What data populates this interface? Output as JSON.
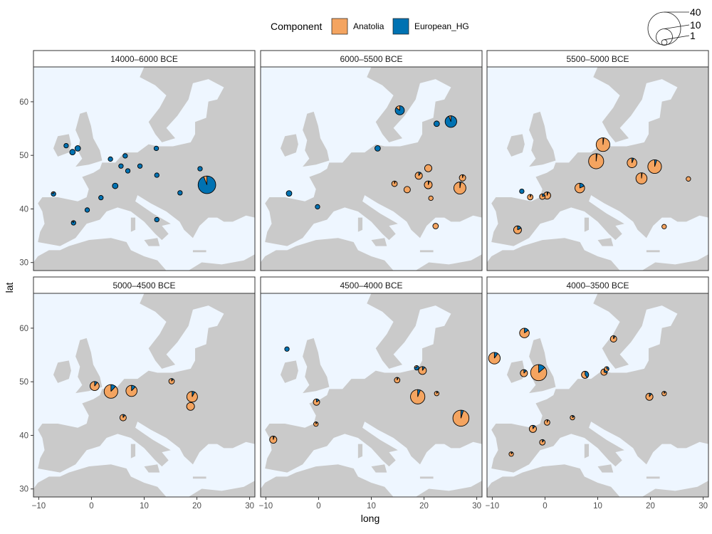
{
  "colors": {
    "anatolia": "#F4A460",
    "european_hg": "#0072B2",
    "sea": "#EEF6FF",
    "land": "#CACACA",
    "border": "#FFFFFF"
  },
  "legend": {
    "title": "Component",
    "entries": [
      "Anatolia",
      "European_HG"
    ],
    "size_labels": [
      "40",
      "10",
      "1"
    ],
    "size_values": [
      40,
      10,
      1
    ]
  },
  "chart_data": {
    "type": "pie",
    "subtype": "faceted map of pie charts",
    "xlabel": "long",
    "ylabel": "lat",
    "xlim": [
      -11,
      31
    ],
    "ylim": [
      28.5,
      66.5
    ],
    "x_ticks": [
      -10,
      0,
      10,
      20,
      30
    ],
    "x_tick_labels": [
      "−10",
      "0",
      "10",
      "20",
      "30"
    ],
    "y_ticks": [
      30,
      40,
      50,
      60
    ],
    "y_tick_labels": [
      "30",
      "40",
      "50",
      "60"
    ],
    "components": [
      "Anatolia",
      "European_HG"
    ],
    "panels": [
      {
        "title": "14000–6000 BCE",
        "points": [
          {
            "long": -7.2,
            "lat": 42.8,
            "n": 2,
            "anatolia": 0.15
          },
          {
            "long": -4.8,
            "lat": 51.8,
            "n": 2,
            "anatolia": 0.0
          },
          {
            "long": -3.6,
            "lat": 50.6,
            "n": 3,
            "anatolia": 0.0
          },
          {
            "long": -2.6,
            "lat": 51.3,
            "n": 3,
            "anatolia": 0.0
          },
          {
            "long": -3.4,
            "lat": 37.4,
            "n": 2,
            "anatolia": 0.1
          },
          {
            "long": -0.8,
            "lat": 39.8,
            "n": 2,
            "anatolia": 0.0
          },
          {
            "long": 1.8,
            "lat": 42.1,
            "n": 2,
            "anatolia": 0.0
          },
          {
            "long": 3.6,
            "lat": 49.3,
            "n": 2,
            "anatolia": 0.0
          },
          {
            "long": 4.5,
            "lat": 44.3,
            "n": 3,
            "anatolia": 0.0
          },
          {
            "long": 5.6,
            "lat": 48.0,
            "n": 2,
            "anatolia": 0.0
          },
          {
            "long": 6.4,
            "lat": 49.9,
            "n": 2,
            "anatolia": 0.0
          },
          {
            "long": 6.9,
            "lat": 47.1,
            "n": 2,
            "anatolia": 0.0
          },
          {
            "long": 9.2,
            "lat": 48.0,
            "n": 2,
            "anatolia": 0.0
          },
          {
            "long": 12.3,
            "lat": 51.3,
            "n": 2,
            "anatolia": 0.0
          },
          {
            "long": 12.4,
            "lat": 46.3,
            "n": 2,
            "anatolia": 0.0
          },
          {
            "long": 12.4,
            "lat": 38.0,
            "n": 2,
            "anatolia": 0.0
          },
          {
            "long": 16.8,
            "lat": 43.0,
            "n": 2,
            "anatolia": 0.0
          },
          {
            "long": 20.6,
            "lat": 47.5,
            "n": 2,
            "anatolia": 0.0
          },
          {
            "long": 21.9,
            "lat": 44.5,
            "n": 30,
            "anatolia": 0.06
          }
        ]
      },
      {
        "title": "6000–5500 BCE",
        "points": [
          {
            "long": -5.6,
            "lat": 42.9,
            "n": 3,
            "anatolia": 0.0
          },
          {
            "long": -0.2,
            "lat": 40.4,
            "n": 2,
            "anatolia": 0.0
          },
          {
            "long": 11.2,
            "lat": 51.3,
            "n": 3,
            "anatolia": 0.0
          },
          {
            "long": 14.4,
            "lat": 44.7,
            "n": 3,
            "anatolia": 0.95
          },
          {
            "long": 15.4,
            "lat": 58.4,
            "n": 8,
            "anatolia": 0.15
          },
          {
            "long": 16.8,
            "lat": 43.6,
            "n": 4,
            "anatolia": 1.0
          },
          {
            "long": 19.0,
            "lat": 46.2,
            "n": 5,
            "anatolia": 0.9
          },
          {
            "long": 20.8,
            "lat": 47.6,
            "n": 5,
            "anatolia": 1.0
          },
          {
            "long": 20.8,
            "lat": 44.5,
            "n": 6,
            "anatolia": 0.95
          },
          {
            "long": 21.3,
            "lat": 42.0,
            "n": 2,
            "anatolia": 1.0
          },
          {
            "long": 22.2,
            "lat": 36.8,
            "n": 3,
            "anatolia": 1.0
          },
          {
            "long": 22.4,
            "lat": 55.9,
            "n": 3,
            "anatolia": 0.0
          },
          {
            "long": 25.1,
            "lat": 56.3,
            "n": 13,
            "anatolia": 0.06
          },
          {
            "long": 26.8,
            "lat": 43.9,
            "n": 14,
            "anatolia": 0.97
          },
          {
            "long": 27.3,
            "lat": 45.8,
            "n": 4,
            "anatolia": 0.95
          }
        ]
      },
      {
        "title": "5500–5000 BCE",
        "points": [
          {
            "long": -4.4,
            "lat": 43.3,
            "n": 2,
            "anatolia": 0.0
          },
          {
            "long": -5.2,
            "lat": 36.1,
            "n": 6,
            "anatolia": 0.82
          },
          {
            "long": -2.8,
            "lat": 42.2,
            "n": 3,
            "anatolia": 0.95
          },
          {
            "long": -0.5,
            "lat": 42.3,
            "n": 3,
            "anatolia": 0.8
          },
          {
            "long": 0.4,
            "lat": 42.5,
            "n": 5,
            "anatolia": 0.95
          },
          {
            "long": 6.6,
            "lat": 43.9,
            "n": 9,
            "anatolia": 0.82
          },
          {
            "long": 9.7,
            "lat": 48.9,
            "n": 22,
            "anatolia": 0.98
          },
          {
            "long": 11.0,
            "lat": 52.0,
            "n": 18,
            "anatolia": 0.98
          },
          {
            "long": 16.5,
            "lat": 48.6,
            "n": 9,
            "anatolia": 0.94
          },
          {
            "long": 18.3,
            "lat": 45.7,
            "n": 12,
            "anatolia": 0.98
          },
          {
            "long": 20.8,
            "lat": 47.9,
            "n": 18,
            "anatolia": 0.95
          },
          {
            "long": 22.6,
            "lat": 36.7,
            "n": 2,
            "anatolia": 1.0
          },
          {
            "long": 27.2,
            "lat": 45.6,
            "n": 2,
            "anatolia": 1.0
          }
        ]
      },
      {
        "title": "5000–4500 BCE",
        "points": [
          {
            "long": 0.6,
            "lat": 49.2,
            "n": 8,
            "anatolia": 0.9
          },
          {
            "long": 3.7,
            "lat": 48.2,
            "n": 18,
            "anatolia": 0.88
          },
          {
            "long": 6.0,
            "lat": 43.3,
            "n": 4,
            "anatolia": 0.9
          },
          {
            "long": 7.6,
            "lat": 48.3,
            "n": 12,
            "anatolia": 0.88
          },
          {
            "long": 15.2,
            "lat": 50.1,
            "n": 3,
            "anatolia": 0.9
          },
          {
            "long": 18.8,
            "lat": 45.4,
            "n": 6,
            "anatolia": 1.0
          },
          {
            "long": 19.1,
            "lat": 47.2,
            "n": 11,
            "anatolia": 0.92
          }
        ]
      },
      {
        "title": "4500–4000 BCE",
        "points": [
          {
            "long": -8.6,
            "lat": 39.2,
            "n": 5,
            "anatolia": 0.95
          },
          {
            "long": -6.0,
            "lat": 56.1,
            "n": 2,
            "anatolia": 0.0
          },
          {
            "long": -0.4,
            "lat": 46.2,
            "n": 4,
            "anatolia": 0.85
          },
          {
            "long": -0.5,
            "lat": 42.1,
            "n": 2,
            "anatolia": 0.9
          },
          {
            "long": 14.9,
            "lat": 50.3,
            "n": 3,
            "anatolia": 0.94
          },
          {
            "long": 18.6,
            "lat": 52.6,
            "n": 2,
            "anatolia": 0.2
          },
          {
            "long": 19.7,
            "lat": 52.1,
            "n": 6,
            "anatolia": 0.9
          },
          {
            "long": 18.8,
            "lat": 47.2,
            "n": 20,
            "anatolia": 0.94
          },
          {
            "long": 22.4,
            "lat": 47.8,
            "n": 2,
            "anatolia": 0.9
          },
          {
            "long": 27.0,
            "lat": 43.2,
            "n": 25,
            "anatolia": 0.95
          }
        ]
      },
      {
        "title": "4000–3500 BCE",
        "points": [
          {
            "long": -9.6,
            "lat": 54.4,
            "n": 13,
            "anatolia": 0.9
          },
          {
            "long": -6.4,
            "lat": 36.5,
            "n": 2,
            "anatolia": 0.9
          },
          {
            "long": -4.0,
            "lat": 51.6,
            "n": 5,
            "anatolia": 0.88
          },
          {
            "long": -3.9,
            "lat": 59.1,
            "n": 9,
            "anatolia": 0.85
          },
          {
            "long": -2.3,
            "lat": 41.2,
            "n": 5,
            "anatolia": 0.9
          },
          {
            "long": -0.5,
            "lat": 38.7,
            "n": 3,
            "anatolia": 0.9
          },
          {
            "long": 0.4,
            "lat": 42.4,
            "n": 3,
            "anatolia": 0.95
          },
          {
            "long": -1.2,
            "lat": 51.7,
            "n": 25,
            "anatolia": 0.86
          },
          {
            "long": 5.2,
            "lat": 43.3,
            "n": 2,
            "anatolia": 0.85
          },
          {
            "long": 7.6,
            "lat": 51.3,
            "n": 5,
            "anatolia": 0.6
          },
          {
            "long": 11.2,
            "lat": 51.8,
            "n": 4,
            "anatolia": 0.7
          },
          {
            "long": 11.7,
            "lat": 52.4,
            "n": 2,
            "anatolia": 0.7
          },
          {
            "long": 13.0,
            "lat": 58.0,
            "n": 4,
            "anatolia": 0.92
          },
          {
            "long": 19.8,
            "lat": 47.2,
            "n": 5,
            "anatolia": 0.9
          },
          {
            "long": 22.6,
            "lat": 47.8,
            "n": 2,
            "anatolia": 0.9
          }
        ]
      }
    ]
  }
}
